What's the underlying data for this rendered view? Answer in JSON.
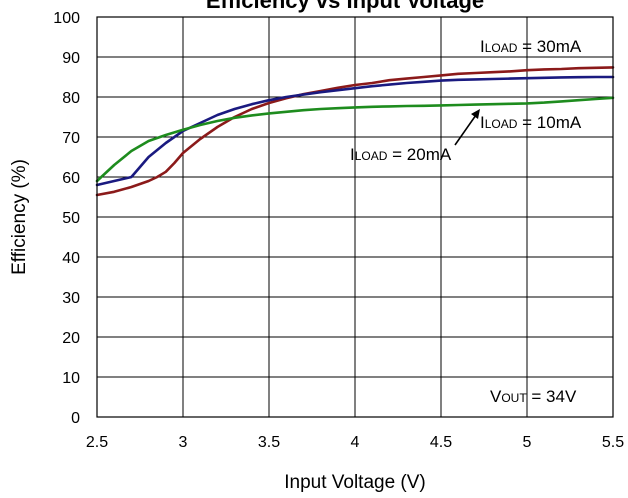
{
  "chart_data": {
    "type": "line",
    "title": "Efficiency vs Input Voltage",
    "xlabel": "Input Voltage (V)",
    "ylabel": "Efficiency (%)",
    "xlim": [
      2.5,
      5.5
    ],
    "ylim": [
      0,
      100
    ],
    "x_ticks": [
      "2.5",
      "3",
      "3.5",
      "4",
      "4.5",
      "5",
      "5.5"
    ],
    "y_ticks": [
      "0",
      "10",
      "20",
      "30",
      "40",
      "50",
      "60",
      "70",
      "80",
      "90",
      "100"
    ],
    "grid": true,
    "series": [
      {
        "name": "ILOAD = 30mA",
        "color": "#8B1A1A",
        "x": [
          2.5,
          2.6,
          2.7,
          2.8,
          2.85,
          2.9,
          2.95,
          3.0,
          3.1,
          3.2,
          3.3,
          3.4,
          3.5,
          3.6,
          3.7,
          3.8,
          3.9,
          4.0,
          4.1,
          4.2,
          4.3,
          4.4,
          4.5,
          4.6,
          4.7,
          4.8,
          4.9,
          5.0,
          5.1,
          5.2,
          5.3,
          5.4,
          5.5
        ],
        "y": [
          55.5,
          56.3,
          57.5,
          59,
          60,
          61.3,
          63.5,
          66,
          69.5,
          72.5,
          75,
          77,
          78.5,
          79.7,
          80.7,
          81.5,
          82.3,
          83,
          83.5,
          84.2,
          84.6,
          85,
          85.4,
          85.8,
          86,
          86.2,
          86.4,
          86.7,
          86.9,
          87,
          87.2,
          87.3,
          87.4
        ]
      },
      {
        "name": "ILOAD = 20mA",
        "color": "#1A1A80",
        "x": [
          2.5,
          2.6,
          2.7,
          2.75,
          2.8,
          2.9,
          3.0,
          3.1,
          3.2,
          3.3,
          3.4,
          3.5,
          3.6,
          3.7,
          3.8,
          3.9,
          4.0,
          4.1,
          4.2,
          4.3,
          4.4,
          4.5,
          4.6,
          4.7,
          4.8,
          4.9,
          5.0,
          5.1,
          5.2,
          5.3,
          5.4,
          5.5
        ],
        "y": [
          58,
          59,
          60,
          62.5,
          65,
          68.5,
          71.5,
          73.5,
          75.5,
          77,
          78.2,
          79.2,
          80,
          80.6,
          81.2,
          81.7,
          82.2,
          82.7,
          83.1,
          83.5,
          83.8,
          84.1,
          84.3,
          84.4,
          84.5,
          84.6,
          84.7,
          84.8,
          84.9,
          84.95,
          85,
          85
        ]
      },
      {
        "name": "ILOAD = 10mA",
        "color": "#1E8C1E",
        "x": [
          2.5,
          2.6,
          2.7,
          2.8,
          2.9,
          3.0,
          3.1,
          3.2,
          3.3,
          3.4,
          3.5,
          3.6,
          3.7,
          3.8,
          3.9,
          4.0,
          4.1,
          4.2,
          4.3,
          4.4,
          4.5,
          4.6,
          4.7,
          4.8,
          4.9,
          5.0,
          5.1,
          5.2,
          5.3,
          5.4,
          5.5
        ],
        "y": [
          59,
          63,
          66.5,
          69,
          70.5,
          71.8,
          73,
          74,
          74.8,
          75.4,
          75.9,
          76.3,
          76.7,
          77,
          77.2,
          77.4,
          77.55,
          77.65,
          77.75,
          77.8,
          77.9,
          78,
          78.1,
          78.2,
          78.3,
          78.4,
          78.6,
          78.9,
          79.2,
          79.5,
          79.8
        ]
      }
    ],
    "annotations": [
      {
        "id": "i30",
        "main": "I",
        "sub": "LOAD",
        "rest": " = 30mA"
      },
      {
        "id": "i10",
        "main": "I",
        "sub": "LOAD",
        "rest": " = 10mA"
      },
      {
        "id": "i20",
        "main": "I",
        "sub": "LOAD",
        "rest": " = 20mA"
      },
      {
        "id": "vout",
        "main": "V",
        "sub": "OUT",
        "rest": " = 34V"
      }
    ]
  }
}
